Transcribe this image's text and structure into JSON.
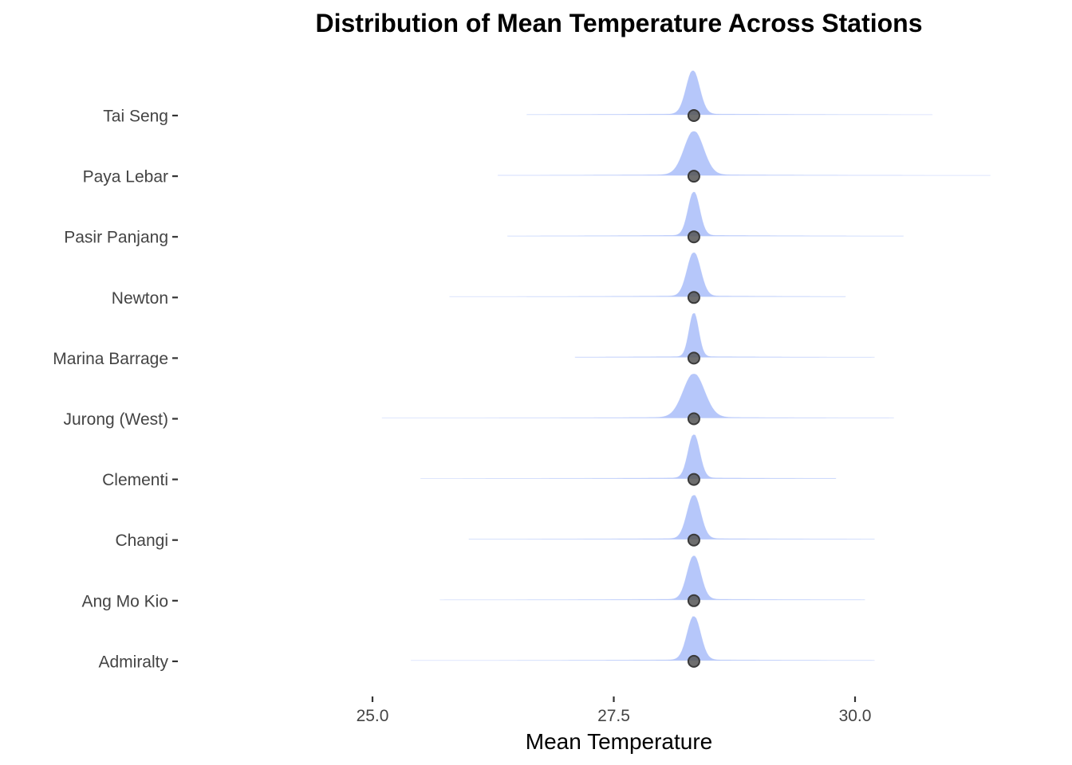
{
  "chart_data": {
    "type": "ridgeline",
    "title": "Distribution of Mean Temperature Across Stations",
    "xlabel": "Mean Temperature",
    "ylabel": "",
    "xlim": [
      23.0,
      31.5
    ],
    "xticks": [
      {
        "value": 25.0,
        "label": "25.0"
      },
      {
        "value": 27.5,
        "label": "27.5"
      },
      {
        "value": 30.0,
        "label": "30.0"
      }
    ],
    "categories": [
      "Tai Seng",
      "Paya Lebar",
      "Pasir Panjang",
      "Newton",
      "Marina Barrage",
      "Jurong (West)",
      "Clementi",
      "Changi",
      "Ang Mo Kio",
      "Admiralty"
    ],
    "series": [
      {
        "name": "Tai Seng",
        "mean": 28.33,
        "peak": 28.32,
        "spread": 0.07,
        "tail_min": 26.6,
        "tail_max": 30.8
      },
      {
        "name": "Paya Lebar",
        "mean": 28.33,
        "peak": 28.33,
        "spread": 0.1,
        "tail_min": 26.3,
        "tail_max": 31.4
      },
      {
        "name": "Pasir Panjang",
        "mean": 28.33,
        "peak": 28.33,
        "spread": 0.06,
        "tail_min": 26.4,
        "tail_max": 30.5
      },
      {
        "name": "Newton",
        "mean": 28.33,
        "peak": 28.33,
        "spread": 0.07,
        "tail_min": 25.8,
        "tail_max": 29.9
      },
      {
        "name": "Marina Barrage",
        "mean": 28.33,
        "peak": 28.33,
        "spread": 0.05,
        "tail_min": 27.1,
        "tail_max": 30.2
      },
      {
        "name": "Jurong (West)",
        "mean": 28.33,
        "peak": 28.33,
        "spread": 0.11,
        "tail_min": 25.1,
        "tail_max": 30.4
      },
      {
        "name": "Clementi",
        "mean": 28.33,
        "peak": 28.33,
        "spread": 0.06,
        "tail_min": 25.5,
        "tail_max": 29.8
      },
      {
        "name": "Changi",
        "mean": 28.33,
        "peak": 28.33,
        "spread": 0.07,
        "tail_min": 26.0,
        "tail_max": 30.2
      },
      {
        "name": "Ang Mo Kio",
        "mean": 28.33,
        "peak": 28.33,
        "spread": 0.07,
        "tail_min": 25.7,
        "tail_max": 30.1
      },
      {
        "name": "Admiralty",
        "mean": 28.33,
        "peak": 28.33,
        "spread": 0.07,
        "tail_min": 25.4,
        "tail_max": 30.2
      }
    ],
    "ridge_color": "#A9BDF9",
    "point_color": "#555555",
    "point_stroke": "#3a3a3a",
    "grid": false,
    "legend": "none"
  }
}
